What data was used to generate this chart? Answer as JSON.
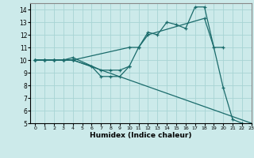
{
  "xlabel": "Humidex (Indice chaleur)",
  "xlim": [
    -0.5,
    23
  ],
  "ylim": [
    5,
    14.5
  ],
  "yticks": [
    5,
    6,
    7,
    8,
    9,
    10,
    11,
    12,
    13,
    14
  ],
  "xticks": [
    0,
    1,
    2,
    3,
    4,
    5,
    6,
    7,
    8,
    9,
    10,
    11,
    12,
    13,
    14,
    15,
    16,
    17,
    18,
    19,
    20,
    21,
    22,
    23
  ],
  "background_color": "#cceaea",
  "grid_color": "#a8d4d4",
  "line_color": "#1a6b6b",
  "series1_x": [
    0,
    1,
    2,
    3,
    4,
    23
  ],
  "series1_y": [
    10,
    10,
    10,
    10,
    10,
    5
  ],
  "series2_x": [
    0,
    1,
    2,
    3,
    4,
    6,
    7,
    8,
    9,
    10,
    11,
    12,
    13,
    14,
    15,
    16,
    17,
    18,
    20,
    21,
    22
  ],
  "series2_y": [
    10,
    10,
    10,
    10,
    10,
    9.5,
    8.7,
    8.7,
    8.7,
    9.5,
    11.0,
    12.2,
    12.0,
    13.0,
    12.8,
    12.5,
    14.2,
    14.2,
    7.8,
    5.3,
    5.0
  ],
  "series3_x": [
    0,
    1,
    2,
    3,
    4,
    10,
    11,
    12,
    18,
    19,
    20
  ],
  "series3_y": [
    10,
    10,
    10,
    10,
    10,
    11.0,
    11.0,
    12.0,
    13.3,
    11.0,
    11.0
  ],
  "series4_x": [
    0,
    1,
    2,
    3,
    4,
    7,
    8,
    9,
    10
  ],
  "series4_y": [
    10,
    10,
    10,
    10,
    10.2,
    9.2,
    9.2,
    9.2,
    9.5
  ]
}
